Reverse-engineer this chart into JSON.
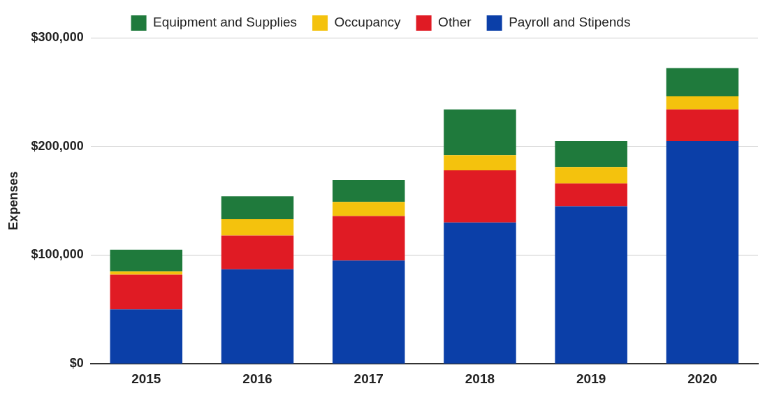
{
  "chart_data": {
    "type": "bar",
    "stacked": true,
    "ylabel": "Expenses",
    "categories": [
      "2015",
      "2016",
      "2017",
      "2018",
      "2019",
      "2020"
    ],
    "series": [
      {
        "name": "Payroll and Stipends",
        "color": "#0b3fa8",
        "values": [
          50000,
          87000,
          95000,
          130000,
          145000,
          205000
        ]
      },
      {
        "name": "Other",
        "color": "#e01b24",
        "values": [
          32000,
          31000,
          41000,
          48000,
          21000,
          29000
        ]
      },
      {
        "name": "Occupancy",
        "color": "#f4c20d",
        "values": [
          3000,
          15000,
          13000,
          14000,
          15000,
          12000
        ]
      },
      {
        "name": "Equipment and Supplies",
        "color": "#1f7a3c",
        "values": [
          20000,
          21000,
          20000,
          42000,
          24000,
          26000
        ]
      }
    ],
    "ylim": [
      0,
      300000
    ],
    "yticks": [
      {
        "value": 0,
        "label": "$0"
      },
      {
        "value": 100000,
        "label": "$100,000"
      },
      {
        "value": 200000,
        "label": "$200,000"
      },
      {
        "value": 300000,
        "label": "$300,000"
      }
    ],
    "grid": "y",
    "legend": "top"
  }
}
